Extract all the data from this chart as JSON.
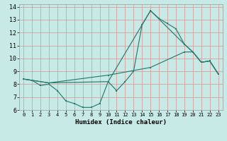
{
  "xlabel": "Humidex (Indice chaleur)",
  "background_color": "#c8eae6",
  "grid_color": "#d4a0a0",
  "line_color": "#2a7a6e",
  "xlim": [
    -0.5,
    23.5
  ],
  "ylim": [
    6,
    14.2
  ],
  "xticks": [
    0,
    1,
    2,
    3,
    4,
    5,
    6,
    7,
    8,
    9,
    10,
    11,
    12,
    13,
    14,
    15,
    16,
    17,
    18,
    19,
    20,
    21,
    22,
    23
  ],
  "yticks": [
    6,
    7,
    8,
    9,
    10,
    11,
    12,
    13,
    14
  ],
  "line1_x": [
    0,
    1,
    2,
    3,
    4,
    5,
    6,
    7,
    8,
    9,
    10,
    11,
    12,
    13,
    14,
    15,
    16,
    17,
    18,
    19,
    20,
    21,
    22,
    23
  ],
  "line1_y": [
    8.4,
    8.3,
    7.9,
    8.0,
    7.5,
    6.7,
    6.5,
    6.2,
    6.2,
    6.5,
    8.2,
    7.5,
    8.2,
    9.0,
    12.6,
    13.7,
    13.1,
    12.7,
    12.3,
    11.1,
    10.5,
    9.7,
    9.8,
    8.8
  ],
  "line2_x": [
    0,
    3,
    10,
    15,
    19,
    20,
    21,
    22,
    23
  ],
  "line2_y": [
    8.4,
    8.1,
    8.2,
    13.7,
    11.1,
    10.5,
    9.7,
    9.8,
    8.8
  ],
  "line3_x": [
    0,
    3,
    10,
    15,
    19,
    20,
    21,
    22,
    23
  ],
  "line3_y": [
    8.4,
    8.1,
    8.7,
    9.3,
    10.5,
    10.5,
    9.7,
    9.8,
    8.8
  ],
  "xlabel_fontsize": 6.5,
  "tick_fontsize_x": 5.0,
  "tick_fontsize_y": 6.0,
  "linewidth": 0.85,
  "markersize": 2.0
}
